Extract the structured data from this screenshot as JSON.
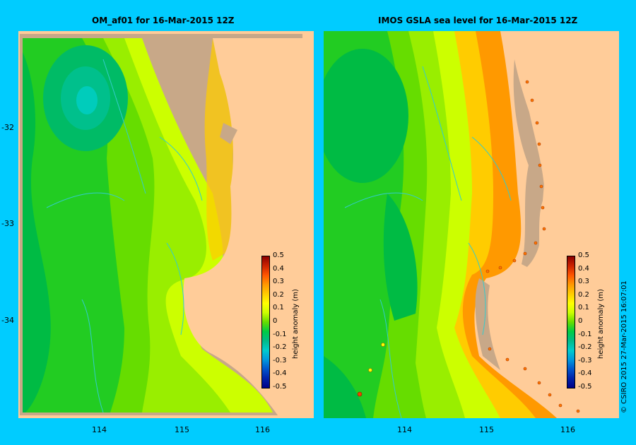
{
  "panels": [
    {
      "title": "OM_af01  for 16-Mar-2015 12Z",
      "colorbar_label": "height anomaly (m)"
    },
    {
      "title": "IMOS GSLA sea level  for 16-Mar-2015 12Z",
      "colorbar_label": "height anomaly (m)"
    }
  ],
  "axes": {
    "lat_ticks": [
      "-32",
      "-33",
      "-34"
    ],
    "lon_ticks": [
      "114",
      "115",
      "116"
    ]
  },
  "colorbar": {
    "ticks": [
      "0.5",
      "0.4",
      "0.3",
      "0.2",
      "0.1",
      "0",
      "-0.1",
      "-0.2",
      "-0.3",
      "-0.4",
      "-0.5"
    ],
    "colors": [
      "#8b0000",
      "#cc2200",
      "#ff5500",
      "#ff9900",
      "#ffcc00",
      "#ffff00",
      "#ccff00",
      "#66dd00",
      "#00cc44",
      "#00bb88",
      "#00cccc",
      "#0099dd",
      "#0055cc",
      "#0022aa",
      "#000088"
    ]
  },
  "copyright": "© CSIRO 2015   27-Mar-2015 16:07:01"
}
